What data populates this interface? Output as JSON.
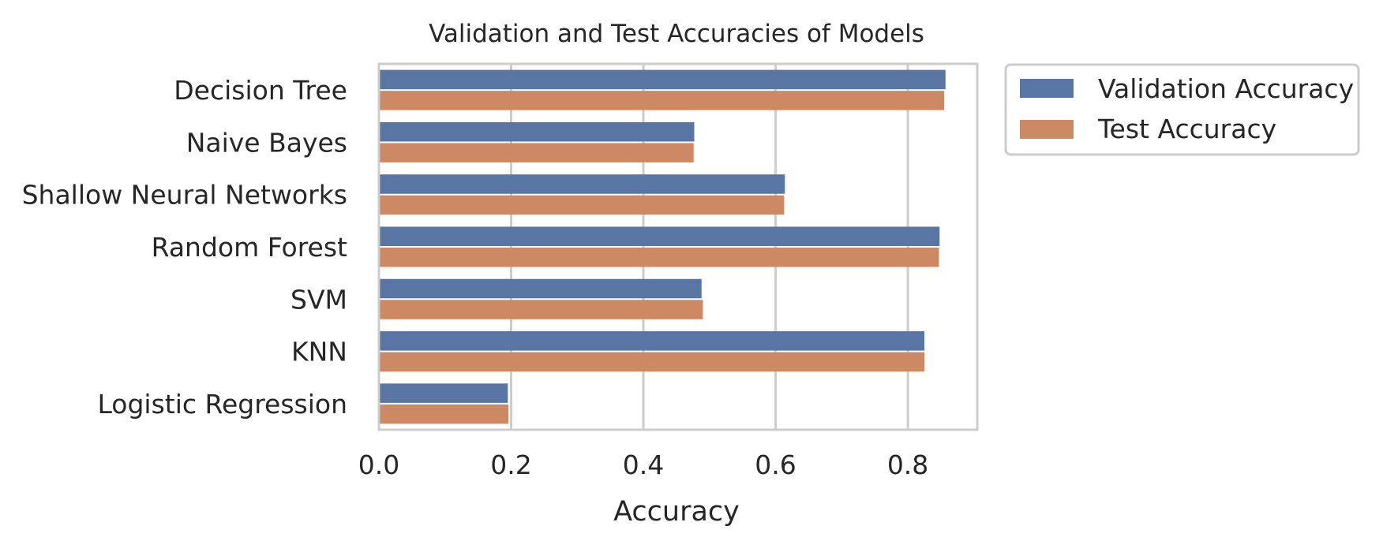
{
  "chart_data": {
    "type": "bar",
    "orientation": "horizontal",
    "title": "Validation and Test Accuracies of Models",
    "xlabel": "Accuracy",
    "ylabel": "",
    "xlim": [
      0,
      0.905
    ],
    "x_ticks": [
      0.0,
      0.2,
      0.4,
      0.6,
      0.8
    ],
    "x_tick_labels": [
      "0.0",
      "0.2",
      "0.4",
      "0.6",
      "0.8"
    ],
    "grid": true,
    "legend_position": "outside-right-top",
    "categories": [
      "Decision Tree",
      "Naive Bayes",
      "Shallow Neural Networks",
      "Random Forest",
      "SVM",
      "KNN",
      "Logistic Regression"
    ],
    "series": [
      {
        "name": "Validation Accuracy",
        "color": "#5875a4",
        "values": [
          0.857,
          0.477,
          0.614,
          0.848,
          0.488,
          0.825,
          0.195
        ]
      },
      {
        "name": "Test Accuracy",
        "color": "#cc8963",
        "values": [
          0.855,
          0.476,
          0.613,
          0.847,
          0.49,
          0.825,
          0.196
        ]
      }
    ]
  }
}
